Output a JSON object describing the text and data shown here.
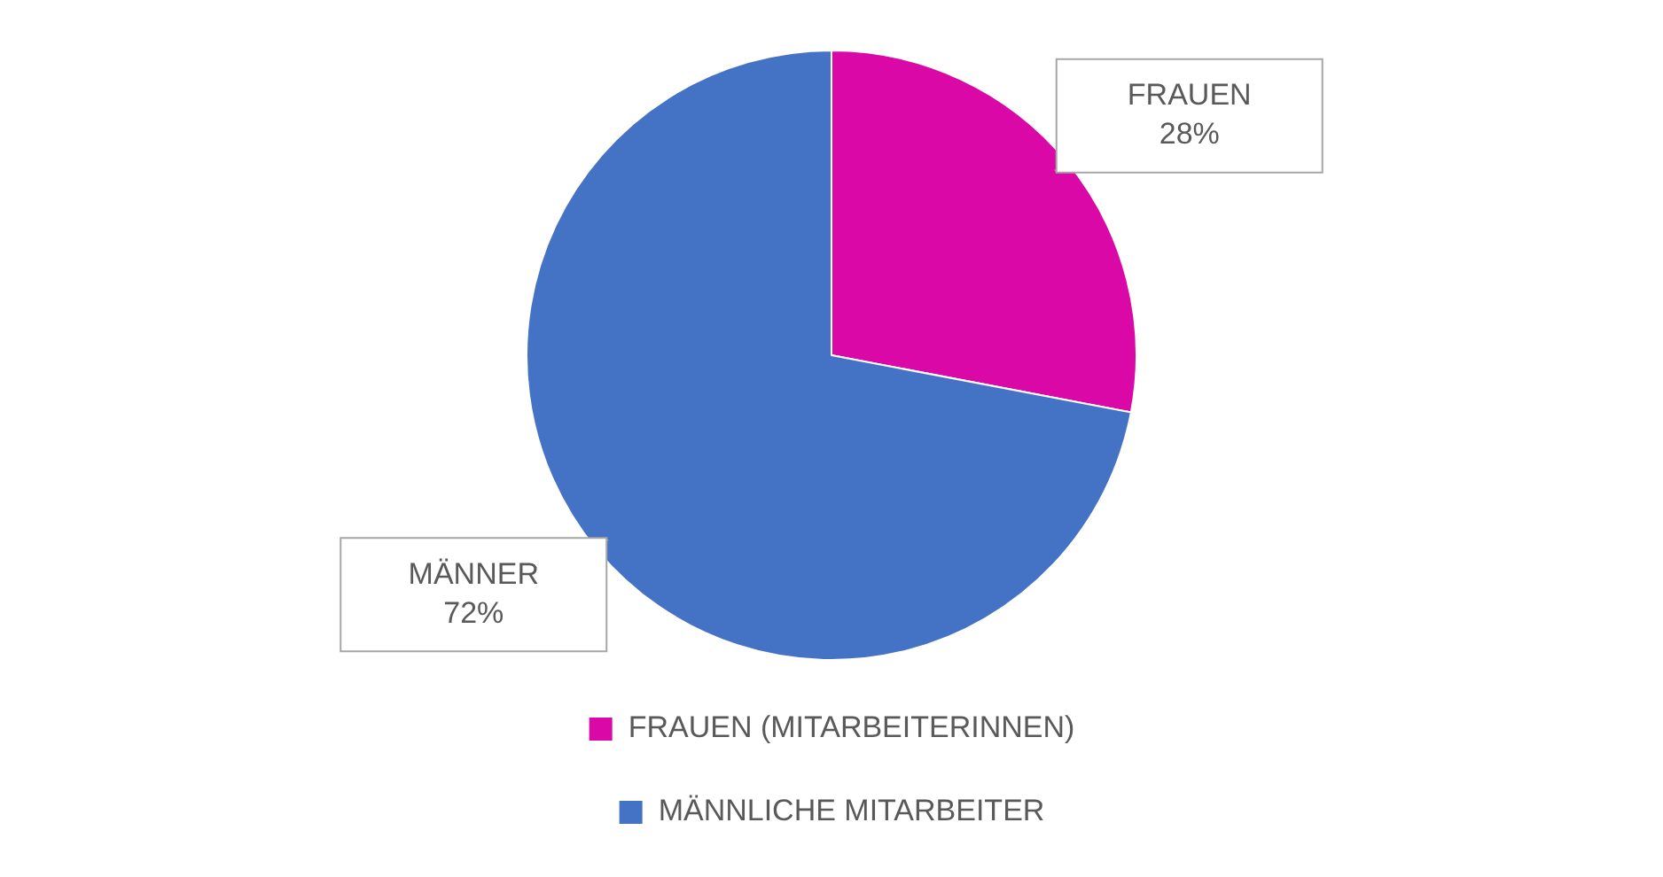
{
  "chart_data": {
    "type": "pie",
    "categories": [
      "FRAUEN (MITARBEITERINNEN)",
      "MÄNNLICHE MITARBEITER"
    ],
    "values": [
      28,
      72
    ],
    "colors": [
      "#db08a8",
      "#4472c4"
    ],
    "value_labels": [
      "FRAUEN\n28%",
      "MÄNNER\n72%"
    ],
    "legend": "bottom"
  }
}
